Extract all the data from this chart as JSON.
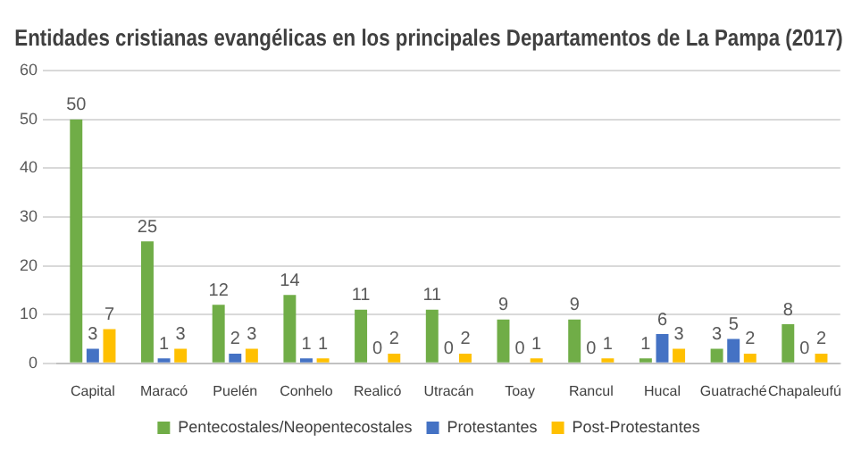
{
  "chart_data": {
    "type": "bar",
    "title": "Entidades cristianas evangélicas en los principales Departamentos de La Pampa (2017)",
    "categories": [
      "Capital",
      "Maracó",
      "Puelén",
      "Conhelo",
      "Realicó",
      "Utracán",
      "Toay",
      "Rancul",
      "Hucal",
      "Guatraché",
      "Chapaleufú"
    ],
    "series": [
      {
        "name": "Pentecostales/Neopentecostales",
        "color": "#70ad47",
        "values": [
          50,
          25,
          12,
          14,
          11,
          11,
          9,
          9,
          1,
          3,
          8
        ]
      },
      {
        "name": "Protestantes",
        "color": "#4472c4",
        "values": [
          3,
          1,
          2,
          1,
          0,
          0,
          0,
          0,
          6,
          5,
          0
        ]
      },
      {
        "name": "Post-Protestantes",
        "color": "#ffc000",
        "values": [
          7,
          3,
          3,
          1,
          2,
          2,
          1,
          1,
          3,
          2,
          2
        ]
      }
    ],
    "ylim": [
      0,
      60
    ],
    "yticks": [
      0,
      10,
      20,
      30,
      40,
      50,
      60
    ],
    "grid": "y",
    "legend": "bottom",
    "data_labels": true
  }
}
